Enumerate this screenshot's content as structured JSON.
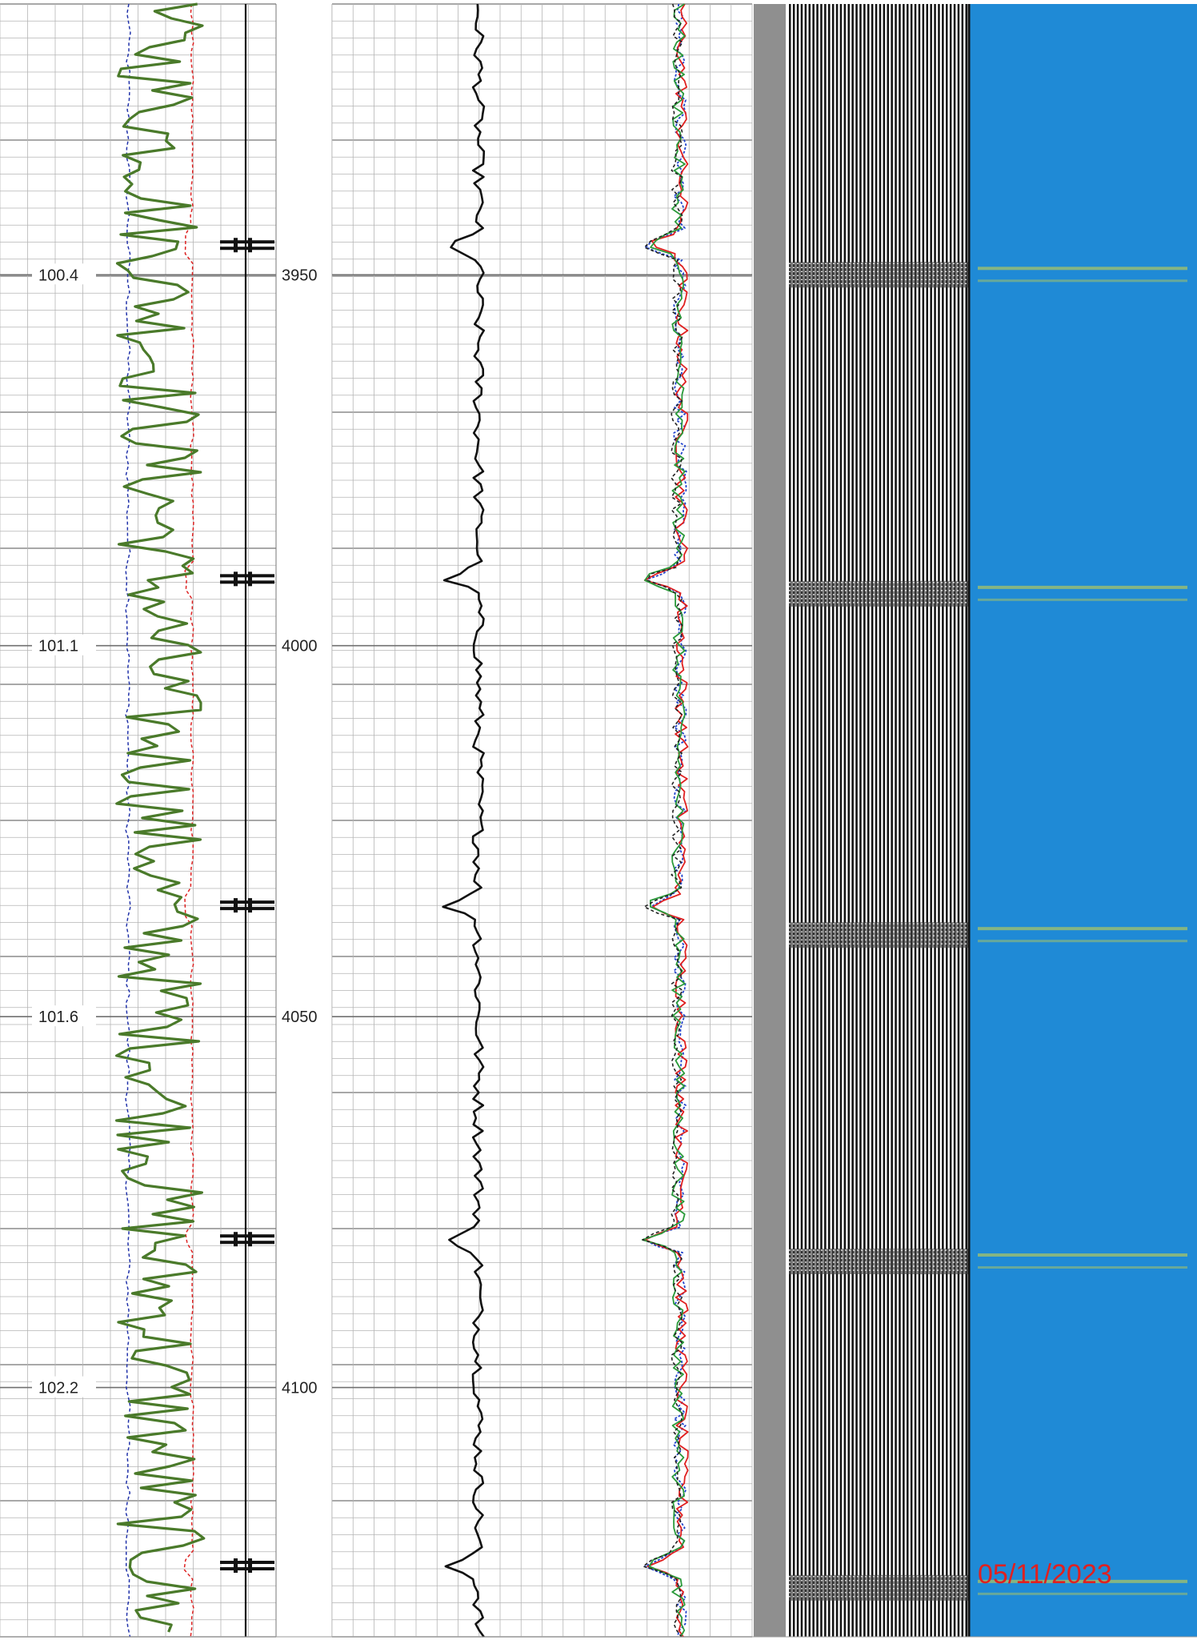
{
  "chart_data": {
    "type": "line",
    "time_track": {
      "tick_labels": [
        "100.4",
        "101.1",
        "101.6",
        "102.2"
      ],
      "tick_depths": [
        3950,
        4000,
        4050,
        4100
      ]
    },
    "depth_track": {
      "tick_labels": [
        "3950",
        "4000",
        "4050",
        "4100"
      ],
      "tick_depths": [
        3950,
        4000,
        4050,
        4100
      ]
    },
    "depth_range": [
      3913.5,
      4133.6
    ],
    "collar_depths": [
      3946,
      3991,
      4035,
      4080,
      4124
    ],
    "vdl_disturbed_depths": [
      3950,
      3993,
      4039,
      4083,
      4127
    ],
    "variable_density_visible": true,
    "grid": true,
    "annotations": [
      "05/11/2023"
    ],
    "colors": {
      "green_curve": "#4a7a2a",
      "blue_dashed": "#2233aa",
      "red_dashed": "#dd2222",
      "black_curve": "#111111",
      "amplitude_red": "#e02020",
      "amplitude_blue": "#2244cc",
      "amplitude_green": "#2a9a3a",
      "amplitude_black": "#222222",
      "map_background": "#1f8ad6",
      "map_highlight": "#d8d840",
      "grid_line": "#b5b5b5",
      "date_stamp": "#e02020"
    }
  }
}
